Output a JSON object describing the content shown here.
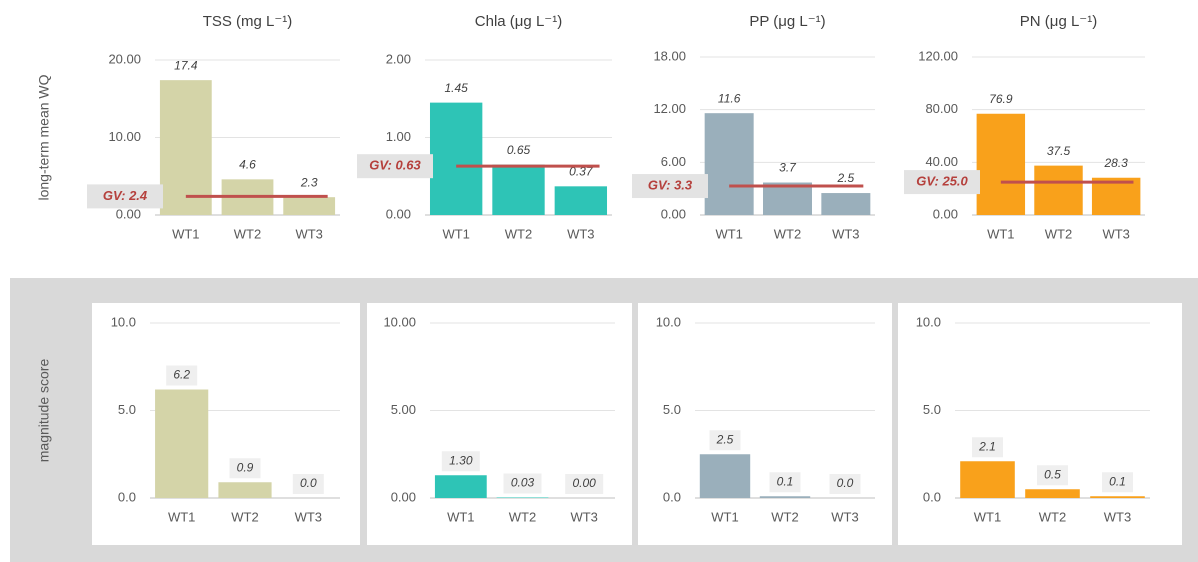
{
  "chart_data": [
    {
      "type": "bar",
      "title": "TSS (mg L⁻¹)",
      "ylabel": "long-term mean WQ",
      "categories": [
        "WT1",
        "WT2",
        "WT3"
      ],
      "values": [
        17.4,
        4.6,
        2.3
      ],
      "color": "#d4d4a8",
      "ylim": [
        0,
        20
      ],
      "yticks": [
        {
          "value": 0,
          "label": "0.00"
        },
        {
          "value": 10,
          "label": "10.00"
        },
        {
          "value": 20,
          "label": "20.00"
        }
      ],
      "grid": true,
      "guideline": {
        "value": 2.4,
        "label": "GV: 2.4",
        "color": "#c0504d"
      }
    },
    {
      "type": "bar",
      "title": "Chla (μg L⁻¹)",
      "categories": [
        "WT1",
        "WT2",
        "WT3"
      ],
      "values": [
        1.45,
        0.65,
        0.37
      ],
      "color": "#2ec4b6",
      "ylim": [
        0,
        2
      ],
      "yticks": [
        {
          "value": 0,
          "label": "0.00"
        },
        {
          "value": 1,
          "label": "1.00"
        },
        {
          "value": 2,
          "label": "2.00"
        }
      ],
      "grid": true,
      "guideline": {
        "value": 0.63,
        "label": "GV: 0.63",
        "color": "#c0504d"
      }
    },
    {
      "type": "bar",
      "title": "PP (μg L⁻¹)",
      "categories": [
        "WT1",
        "WT2",
        "WT3"
      ],
      "values": [
        11.6,
        3.7,
        2.5
      ],
      "color": "#9aafbb",
      "ylim": [
        0,
        18
      ],
      "yticks": [
        {
          "value": 0,
          "label": "0.00"
        },
        {
          "value": 6,
          "label": "6.00"
        },
        {
          "value": 12,
          "label": "12.00"
        },
        {
          "value": 18,
          "label": "18.00"
        }
      ],
      "grid": true,
      "guideline": {
        "value": 3.3,
        "label": "GV: 3.3",
        "color": "#c0504d"
      }
    },
    {
      "type": "bar",
      "title": "PN (μg L⁻¹)",
      "categories": [
        "WT1",
        "WT2",
        "WT3"
      ],
      "values": [
        76.9,
        37.5,
        28.3
      ],
      "color": "#f9a11b",
      "ylim": [
        0,
        120
      ],
      "yticks": [
        {
          "value": 0,
          "label": "0.00"
        },
        {
          "value": 40,
          "label": "40.00"
        },
        {
          "value": 80,
          "label": "80.00"
        },
        {
          "value": 120,
          "label": "120.00"
        }
      ],
      "grid": true,
      "guideline": {
        "value": 25.0,
        "label": "GV: 25.0",
        "color": "#c0504d"
      }
    },
    {
      "type": "bar",
      "ylabel": "magnitude score",
      "categories": [
        "WT1",
        "WT2",
        "WT3"
      ],
      "values": [
        6.2,
        0.9,
        0
      ],
      "value_labels": [
        "6.2",
        "0.9",
        "0.0"
      ],
      "color": "#d4d4a8",
      "ylim": [
        0,
        10
      ],
      "yticks": [
        {
          "value": 0,
          "label": "0.0"
        },
        {
          "value": 5,
          "label": "5.0"
        },
        {
          "value": 10,
          "label": "10.0"
        }
      ],
      "grid": true
    },
    {
      "type": "bar",
      "categories": [
        "WT1",
        "WT2",
        "WT3"
      ],
      "values": [
        1.3,
        0.03,
        0
      ],
      "value_labels": [
        "1.30",
        "0.03",
        "0.00"
      ],
      "color": "#2ec4b6",
      "ylim": [
        0,
        10
      ],
      "yticks": [
        {
          "value": 0,
          "label": "0.00"
        },
        {
          "value": 5,
          "label": "5.00"
        },
        {
          "value": 10,
          "label": "10.00"
        }
      ],
      "grid": true
    },
    {
      "type": "bar",
      "categories": [
        "WT1",
        "WT2",
        "WT3"
      ],
      "values": [
        2.5,
        0.1,
        0
      ],
      "value_labels": [
        "2.5",
        "0.1",
        "0.0"
      ],
      "color": "#9aafbb",
      "ylim": [
        0,
        10
      ],
      "yticks": [
        {
          "value": 0,
          "label": "0.0"
        },
        {
          "value": 5,
          "label": "5.0"
        },
        {
          "value": 10,
          "label": "10.0"
        }
      ],
      "grid": true
    },
    {
      "type": "bar",
      "categories": [
        "WT1",
        "WT2",
        "WT3"
      ],
      "values": [
        2.1,
        0.5,
        0.1
      ],
      "color": "#f9a11b",
      "ylim": [
        0,
        10
      ],
      "yticks": [
        {
          "value": 0,
          "label": "0.0"
        },
        {
          "value": 5,
          "label": "5.0"
        },
        {
          "value": 10,
          "label": "10.0"
        }
      ],
      "grid": true
    }
  ]
}
